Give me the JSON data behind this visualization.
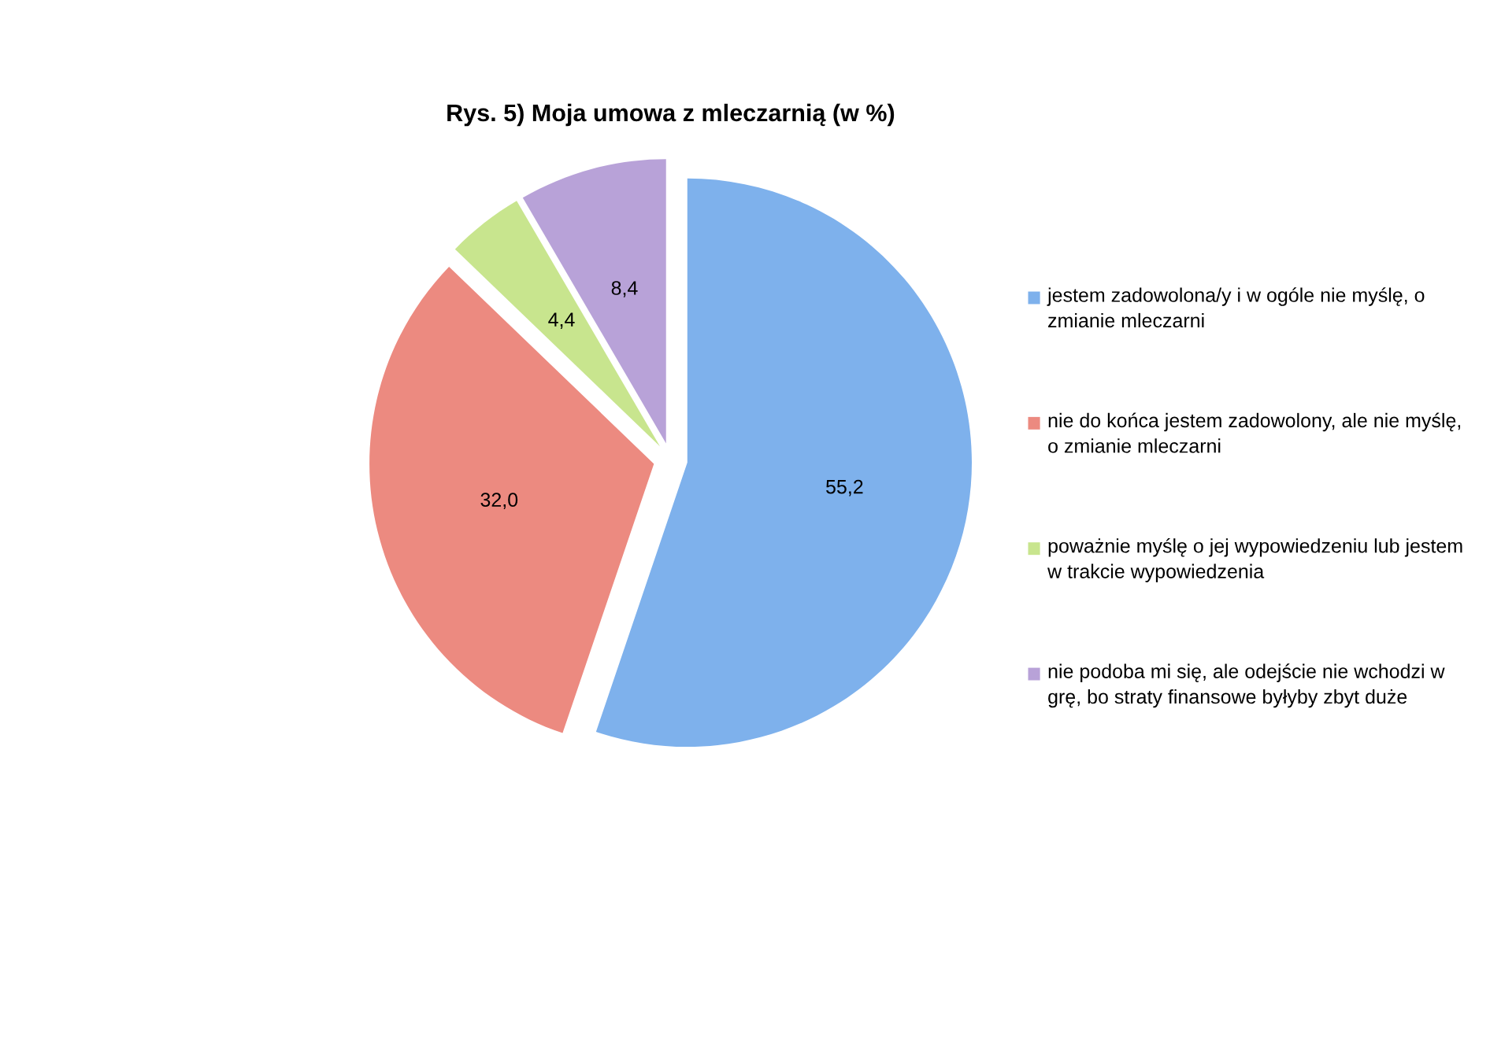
{
  "chart_data": {
    "type": "pie",
    "title": "Rys. 5) Moja umowa z mleczarnią (w %)",
    "categories": [
      "jestem zadowolona/y i w ogóle nie myślę, o zmianie mleczarni",
      "nie do końca jestem zadowolony, ale nie myślę, o zmianie mleczarni",
      "poważnie myślę o jej wypowiedzeniu lub jestem w trakcie wypowiedzenia",
      "nie podoba mi się, ale odejście nie wchodzi w grę, bo straty finansowe byłyby zbyt duże"
    ],
    "values": [
      55.2,
      32.0,
      4.4,
      8.4
    ],
    "value_labels": [
      "55,2",
      "32,0",
      "4,4",
      "8,4"
    ],
    "colors": [
      "#7eb1ec",
      "#ec8a80",
      "#c8e58e",
      "#b8a2d8"
    ],
    "legend": "right"
  }
}
